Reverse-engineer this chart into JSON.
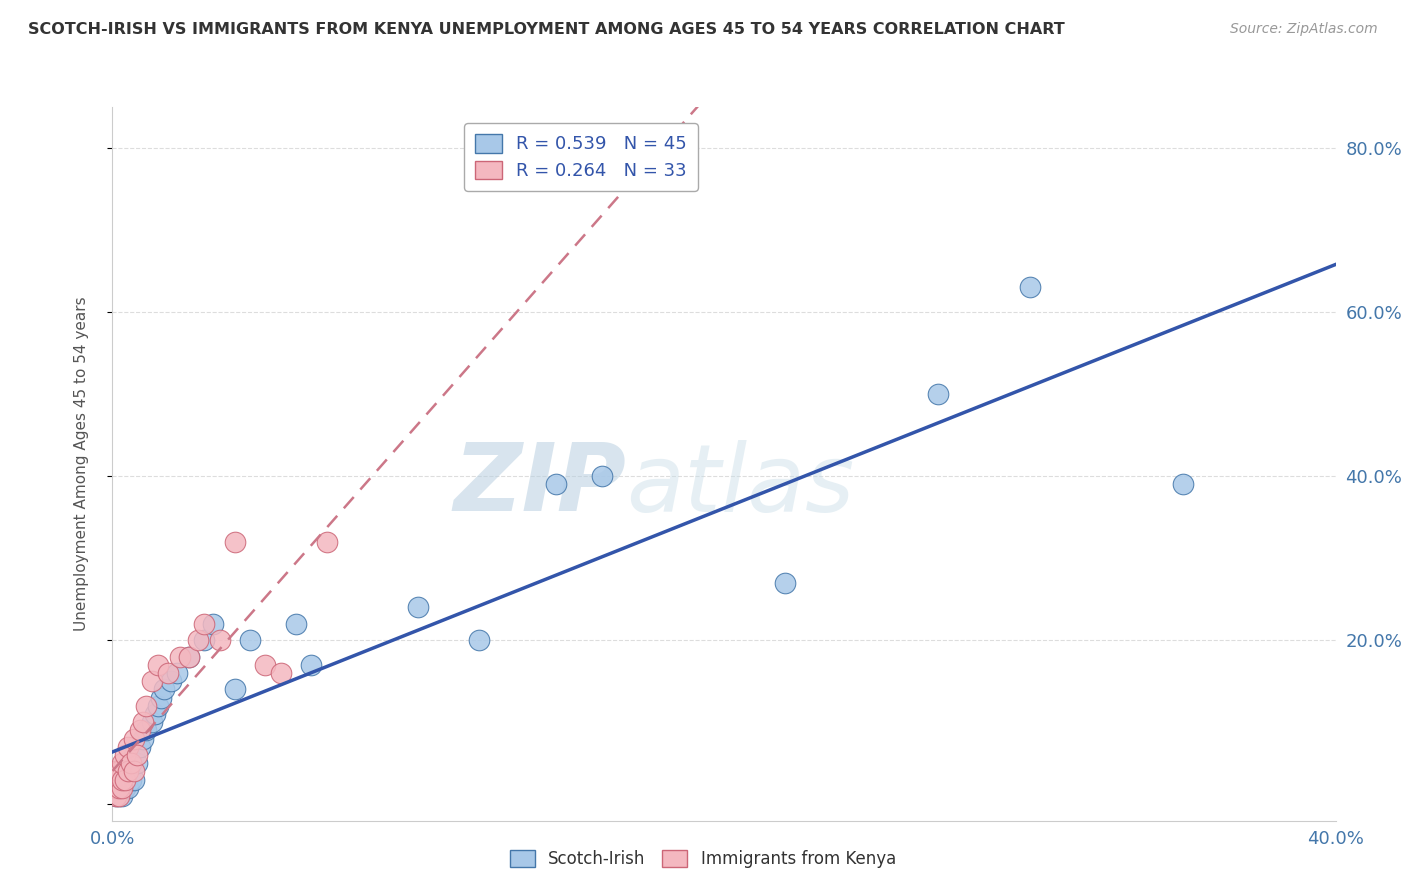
{
  "title": "SCOTCH-IRISH VS IMMIGRANTS FROM KENYA UNEMPLOYMENT AMONG AGES 45 TO 54 YEARS CORRELATION CHART",
  "source": "Source: ZipAtlas.com",
  "ylabel": "Unemployment Among Ages 45 to 54 years",
  "ytick_values": [
    0.0,
    0.2,
    0.4,
    0.6,
    0.8
  ],
  "ytick_labels": [
    "",
    "20.0%",
    "40.0%",
    "60.0%",
    "80.0%"
  ],
  "xlim": [
    0.0,
    0.4
  ],
  "ylim": [
    -0.02,
    0.85
  ],
  "scotch_irish_color": "#a8c8e8",
  "scotch_irish_edge": "#4477aa",
  "kenya_color": "#f4b8c0",
  "kenya_edge": "#cc6677",
  "legend_scotch_r": "R = 0.539",
  "legend_scotch_n": "N = 45",
  "legend_kenya_r": "R = 0.264",
  "legend_kenya_n": "N = 33",
  "scotch_irish_x": [
    0.001,
    0.001,
    0.001,
    0.001,
    0.002,
    0.002,
    0.002,
    0.002,
    0.003,
    0.003,
    0.003,
    0.004,
    0.004,
    0.005,
    0.005,
    0.006,
    0.006,
    0.007,
    0.007,
    0.008,
    0.009,
    0.01,
    0.011,
    0.013,
    0.014,
    0.015,
    0.016,
    0.017,
    0.019,
    0.021,
    0.025,
    0.03,
    0.033,
    0.04,
    0.045,
    0.06,
    0.065,
    0.1,
    0.12,
    0.145,
    0.16,
    0.22,
    0.27,
    0.3,
    0.35
  ],
  "scotch_irish_y": [
    0.01,
    0.02,
    0.03,
    0.04,
    0.01,
    0.02,
    0.03,
    0.04,
    0.01,
    0.02,
    0.04,
    0.02,
    0.04,
    0.02,
    0.04,
    0.03,
    0.05,
    0.03,
    0.06,
    0.05,
    0.07,
    0.08,
    0.09,
    0.1,
    0.11,
    0.12,
    0.13,
    0.14,
    0.15,
    0.16,
    0.18,
    0.2,
    0.22,
    0.14,
    0.2,
    0.22,
    0.17,
    0.24,
    0.2,
    0.39,
    0.4,
    0.27,
    0.5,
    0.63,
    0.39
  ],
  "kenya_x": [
    0.001,
    0.001,
    0.001,
    0.001,
    0.002,
    0.002,
    0.002,
    0.003,
    0.003,
    0.003,
    0.004,
    0.004,
    0.005,
    0.005,
    0.006,
    0.007,
    0.007,
    0.008,
    0.009,
    0.01,
    0.011,
    0.013,
    0.015,
    0.018,
    0.022,
    0.025,
    0.028,
    0.03,
    0.035,
    0.04,
    0.05,
    0.055,
    0.07
  ],
  "kenya_y": [
    0.01,
    0.02,
    0.03,
    0.04,
    0.01,
    0.02,
    0.04,
    0.02,
    0.03,
    0.05,
    0.03,
    0.06,
    0.04,
    0.07,
    0.05,
    0.04,
    0.08,
    0.06,
    0.09,
    0.1,
    0.12,
    0.15,
    0.17,
    0.16,
    0.18,
    0.18,
    0.2,
    0.22,
    0.2,
    0.32,
    0.17,
    0.16,
    0.32
  ],
  "watermark_zip": "ZIP",
  "watermark_atlas": "atlas",
  "background_color": "#ffffff",
  "grid_color": "#dddddd",
  "scotch_line_color": "#3355aa",
  "kenya_line_color": "#cc7788"
}
